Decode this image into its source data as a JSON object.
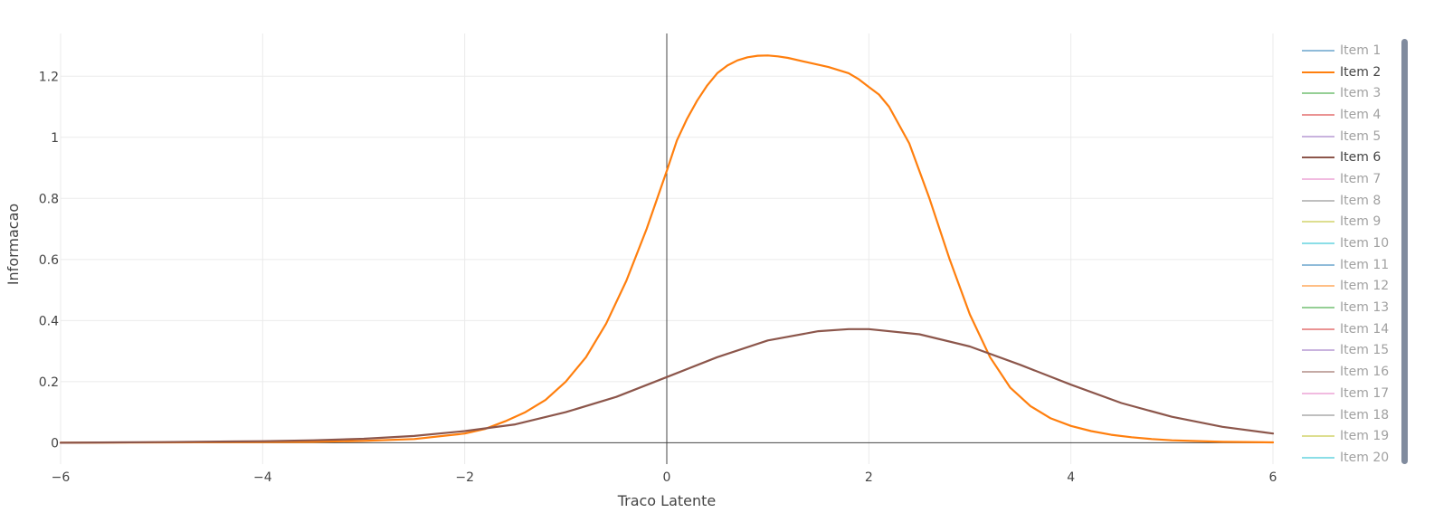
{
  "chart_data": {
    "type": "line",
    "xlabel": "Traco Latente",
    "ylabel": "Informacao",
    "xlim": [
      -6,
      6
    ],
    "ylim": [
      -0.07,
      1.34
    ],
    "x_ticks": [
      -6,
      -4,
      -2,
      0,
      2,
      4,
      6
    ],
    "x_tick_labels": [
      "−6",
      "−4",
      "−2",
      "0",
      "2",
      "4",
      "6"
    ],
    "y_ticks": [
      0,
      0.2,
      0.4,
      0.6,
      0.8,
      1,
      1.2
    ],
    "y_tick_labels": [
      "0",
      "0.2",
      "0.4",
      "0.6",
      "0.8",
      "1",
      "1.2"
    ],
    "grid": true,
    "legend_position": "right",
    "series": [
      {
        "name": "Item 2",
        "color": "#ff7f0e",
        "x": [
          -6,
          -5,
          -4,
          -3.5,
          -3,
          -2.5,
          -2,
          -1.8,
          -1.6,
          -1.4,
          -1.2,
          -1,
          -0.8,
          -0.6,
          -0.4,
          -0.2,
          0,
          0.1,
          0.2,
          0.3,
          0.4,
          0.5,
          0.6,
          0.7,
          0.8,
          0.9,
          1,
          1.1,
          1.2,
          1.4,
          1.6,
          1.8,
          1.9,
          2,
          2.1,
          2.2,
          2.4,
          2.6,
          2.8,
          3,
          3.2,
          3.4,
          3.6,
          3.8,
          4,
          4.2,
          4.4,
          4.6,
          4.8,
          5,
          5.5,
          6
        ],
        "y": [
          0.0,
          0.001,
          0.002,
          0.003,
          0.006,
          0.012,
          0.03,
          0.045,
          0.07,
          0.1,
          0.14,
          0.2,
          0.28,
          0.39,
          0.53,
          0.7,
          0.89,
          0.99,
          1.06,
          1.12,
          1.17,
          1.21,
          1.235,
          1.252,
          1.262,
          1.267,
          1.268,
          1.265,
          1.26,
          1.245,
          1.23,
          1.21,
          1.19,
          1.165,
          1.14,
          1.1,
          0.98,
          0.8,
          0.6,
          0.42,
          0.28,
          0.18,
          0.12,
          0.08,
          0.055,
          0.038,
          0.026,
          0.018,
          0.012,
          0.008,
          0.003,
          0.001
        ]
      },
      {
        "name": "Item 6",
        "color": "#8c564b",
        "x": [
          -6,
          -5,
          -4,
          -3.5,
          -3,
          -2.5,
          -2,
          -1.5,
          -1,
          -0.5,
          0,
          0.5,
          1,
          1.5,
          1.8,
          2,
          2.5,
          3,
          3.5,
          4,
          4.5,
          5,
          5.5,
          6
        ],
        "y": [
          0.0,
          0.002,
          0.005,
          0.008,
          0.013,
          0.022,
          0.038,
          0.06,
          0.1,
          0.15,
          0.215,
          0.28,
          0.335,
          0.365,
          0.372,
          0.372,
          0.355,
          0.315,
          0.255,
          0.19,
          0.13,
          0.085,
          0.052,
          0.03
        ]
      }
    ]
  },
  "legend": [
    {
      "label": "Item 1",
      "color": "#1f77b4",
      "visible": false
    },
    {
      "label": "Item 2",
      "color": "#ff7f0e",
      "visible": true
    },
    {
      "label": "Item 3",
      "color": "#2ca02c",
      "visible": false
    },
    {
      "label": "Item 4",
      "color": "#d62728",
      "visible": false
    },
    {
      "label": "Item 5",
      "color": "#9467bd",
      "visible": false
    },
    {
      "label": "Item 6",
      "color": "#8c564b",
      "visible": true
    },
    {
      "label": "Item 7",
      "color": "#e377c2",
      "visible": false
    },
    {
      "label": "Item 8",
      "color": "#7f7f7f",
      "visible": false
    },
    {
      "label": "Item 9",
      "color": "#bcbd22",
      "visible": false
    },
    {
      "label": "Item 10",
      "color": "#17becf",
      "visible": false
    },
    {
      "label": "Item 11",
      "color": "#1f77b4",
      "visible": false
    },
    {
      "label": "Item 12",
      "color": "#ff7f0e",
      "visible": false
    },
    {
      "label": "Item 13",
      "color": "#2ca02c",
      "visible": false
    },
    {
      "label": "Item 14",
      "color": "#d62728",
      "visible": false
    },
    {
      "label": "Item 15",
      "color": "#9467bd",
      "visible": false
    },
    {
      "label": "Item 16",
      "color": "#8c564b",
      "visible": false
    },
    {
      "label": "Item 17",
      "color": "#e377c2",
      "visible": false
    },
    {
      "label": "Item 18",
      "color": "#7f7f7f",
      "visible": false
    },
    {
      "label": "Item 19",
      "color": "#bcbd22",
      "visible": false
    },
    {
      "label": "Item 20",
      "color": "#17becf",
      "visible": false
    }
  ]
}
